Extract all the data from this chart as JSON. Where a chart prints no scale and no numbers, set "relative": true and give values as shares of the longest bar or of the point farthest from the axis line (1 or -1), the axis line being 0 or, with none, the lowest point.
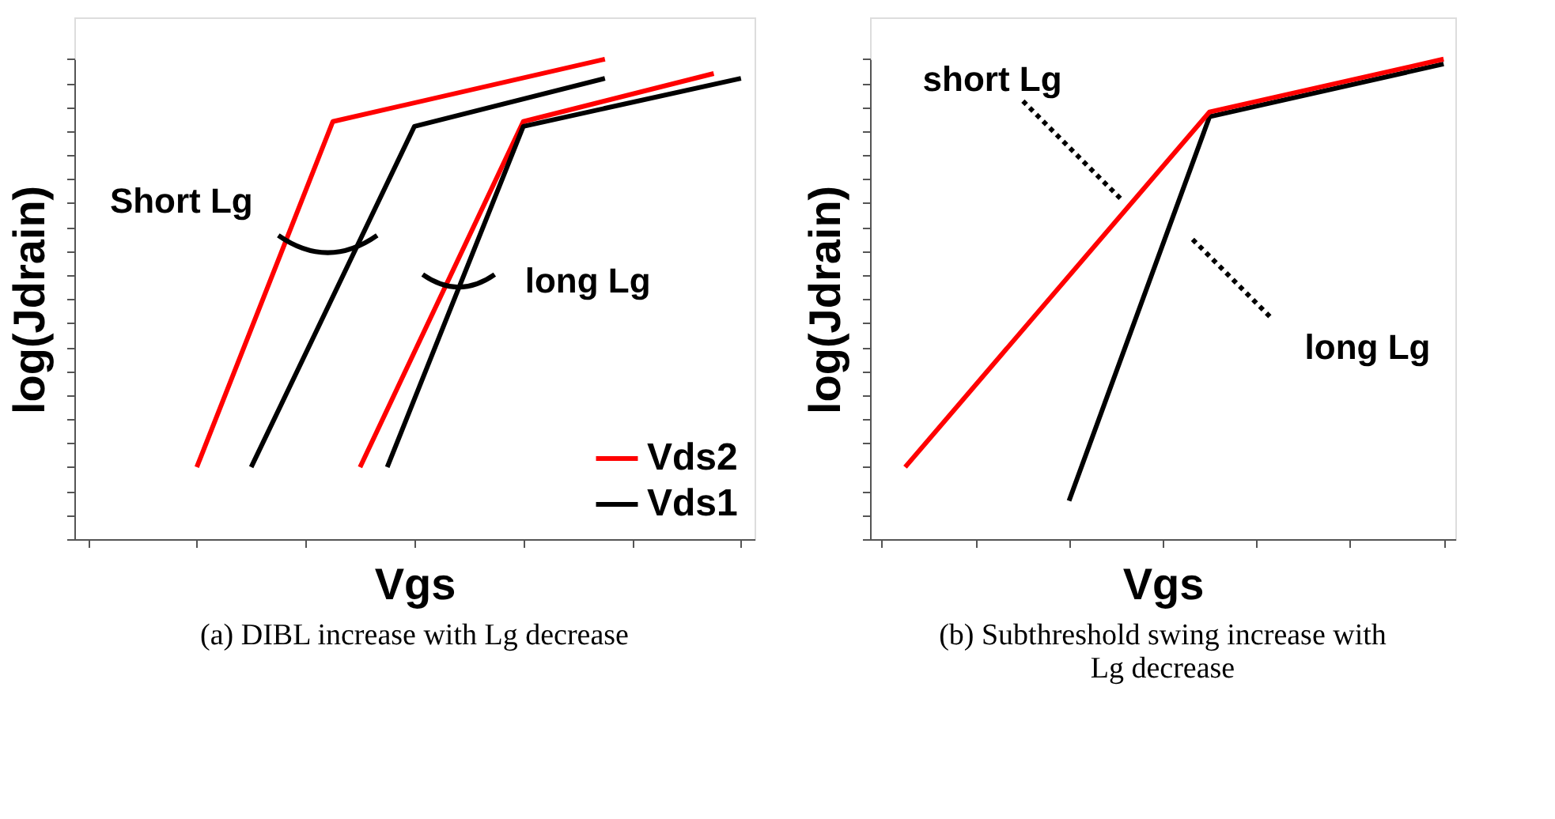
{
  "chart_data": [
    {
      "type": "line",
      "title": "(a) DIBL increase with Lg decrease",
      "xlabel": "Vgs",
      "ylabel": "log(Jdrain)",
      "relative": true,
      "tick_labels": false,
      "grid": false,
      "legend": "bottom right",
      "marker": "none",
      "line_style": "solid",
      "categories": [
        null,
        null,
        null,
        null,
        null,
        null,
        null,
        null,
        null,
        null,
        null,
        null,
        null,
        null,
        null,
        null,
        null,
        null,
        null,
        null,
        null,
        null,
        null,
        null,
        null
      ],
      "series": [
        {
          "name": "Vds2",
          "color": "#ff0000",
          "values": [
            null,
            null,
            null,
            null,
            0.15,
            null,
            null,
            null,
            null,
            0.87,
            null,
            null,
            null,
            null,
            null,
            null,
            null,
            null,
            null,
            1.0,
            null,
            null,
            null,
            null,
            null
          ]
        },
        {
          "name": "Vds1",
          "color": "#000000",
          "values": [
            null,
            null,
            null,
            null,
            null,
            null,
            0.15,
            null,
            null,
            null,
            null,
            null,
            0.86,
            null,
            null,
            null,
            null,
            null,
            null,
            0.96,
            null,
            null,
            null,
            null,
            null
          ]
        },
        {
          "color": "#ff0000",
          "values": [
            null,
            null,
            null,
            null,
            null,
            null,
            null,
            null,
            null,
            null,
            0.15,
            null,
            null,
            null,
            null,
            null,
            0.87,
            null,
            null,
            null,
            null,
            null,
            null,
            0.97,
            null
          ]
        },
        {
          "color": "#000000",
          "values": [
            null,
            null,
            null,
            null,
            null,
            null,
            null,
            null,
            null,
            null,
            null,
            0.15,
            null,
            null,
            null,
            null,
            0.86,
            null,
            null,
            null,
            null,
            null,
            null,
            null,
            0.96
          ]
        }
      ],
      "annotations": [
        "Short Lg",
        "long Lg"
      ]
    },
    {
      "type": "line",
      "title": "(b) Subthreshold swing increase with Lg decrease",
      "xlabel": "Vgs",
      "ylabel": "log(Jdrain)",
      "relative": true,
      "tick_labels": false,
      "grid": false,
      "marker": "none",
      "line_style": "solid",
      "categories": [
        null,
        null,
        null,
        null,
        null,
        null,
        null,
        null,
        null,
        null,
        null,
        null,
        null,
        null,
        null,
        null,
        null,
        null,
        null,
        null,
        null,
        null,
        null,
        null,
        null
      ],
      "series": [
        {
          "color": "#000000",
          "values": [
            null,
            null,
            null,
            null,
            null,
            null,
            null,
            null,
            0.08,
            null,
            null,
            null,
            null,
            null,
            0.88,
            null,
            null,
            null,
            null,
            null,
            null,
            null,
            null,
            null,
            0.99
          ]
        },
        {
          "color": "#ff0000",
          "values": [
            null,
            0.15,
            null,
            null,
            null,
            null,
            null,
            null,
            null,
            null,
            null,
            null,
            null,
            null,
            0.89,
            null,
            null,
            null,
            null,
            null,
            null,
            null,
            null,
            null,
            1.0
          ]
        }
      ],
      "annotations": [
        "short Lg",
        "long Lg"
      ]
    }
  ]
}
